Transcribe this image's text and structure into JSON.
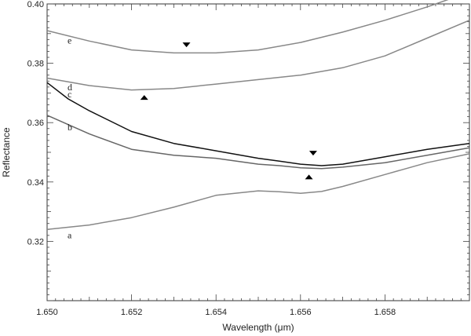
{
  "chart_data": {
    "type": "line",
    "xlabel": "Wavelength (μm)",
    "ylabel": "Reflectance",
    "xlim": [
      1.65,
      1.66
    ],
    "ylim": [
      0.3,
      0.4
    ],
    "x_ticks": [
      "1.650",
      "1.652",
      "1.654",
      "1.656",
      "1.658"
    ],
    "x_tick_values": [
      1.65,
      1.652,
      1.654,
      1.656,
      1.658
    ],
    "y_ticks": [
      "0.32",
      "0.34",
      "0.36",
      "0.38",
      "0.40"
    ],
    "y_tick_values": [
      0.32,
      0.34,
      0.36,
      0.38,
      0.4
    ],
    "grid": false,
    "legend": "none",
    "series": [
      {
        "name": "a",
        "color": "#888888",
        "x": [
          1.65,
          1.651,
          1.652,
          1.653,
          1.654,
          1.655,
          1.6555,
          1.656,
          1.6565,
          1.657,
          1.658,
          1.659,
          1.66
        ],
        "y": [
          0.324,
          0.3255,
          0.328,
          0.3315,
          0.3355,
          0.337,
          0.3367,
          0.3362,
          0.3368,
          0.3385,
          0.3425,
          0.3465,
          0.3495
        ]
      },
      {
        "name": "b",
        "color": "#666666",
        "x": [
          1.65,
          1.651,
          1.652,
          1.653,
          1.654,
          1.655,
          1.6555,
          1.656,
          1.6565,
          1.657,
          1.658,
          1.659,
          1.66
        ],
        "y": [
          0.3625,
          0.3562,
          0.351,
          0.349,
          0.348,
          0.346,
          0.3455,
          0.3448,
          0.3445,
          0.345,
          0.3465,
          0.349,
          0.3515
        ]
      },
      {
        "name": "c",
        "color": "#111111",
        "x": [
          1.65,
          1.6505,
          1.651,
          1.652,
          1.653,
          1.654,
          1.655,
          1.6555,
          1.656,
          1.6565,
          1.657,
          1.658,
          1.659,
          1.66
        ],
        "y": [
          0.3735,
          0.368,
          0.364,
          0.357,
          0.353,
          0.3505,
          0.348,
          0.347,
          0.346,
          0.3455,
          0.346,
          0.3485,
          0.351,
          0.353
        ]
      },
      {
        "name": "d",
        "color": "#888888",
        "x": [
          1.65,
          1.651,
          1.652,
          1.653,
          1.654,
          1.655,
          1.656,
          1.657,
          1.658,
          1.659,
          1.66
        ],
        "y": [
          0.375,
          0.3725,
          0.371,
          0.3715,
          0.373,
          0.3745,
          0.376,
          0.3785,
          0.3825,
          0.3885,
          0.3945
        ]
      },
      {
        "name": "e",
        "color": "#888888",
        "x": [
          1.65,
          1.651,
          1.652,
          1.653,
          1.654,
          1.655,
          1.656,
          1.657,
          1.658,
          1.659,
          1.66
        ],
        "y": [
          0.391,
          0.3875,
          0.3845,
          0.3835,
          0.3835,
          0.3845,
          0.387,
          0.3905,
          0.3945,
          0.399,
          0.404
        ]
      }
    ],
    "annotations": [
      {
        "kind": "triangle-down",
        "x": 1.6533,
        "y": 0.3862
      },
      {
        "kind": "triangle-up",
        "x": 1.6523,
        "y": 0.3685
      },
      {
        "kind": "triangle-down",
        "x": 1.6563,
        "y": 0.3497
      },
      {
        "kind": "triangle-up",
        "x": 1.6562,
        "y": 0.3417
      }
    ]
  }
}
